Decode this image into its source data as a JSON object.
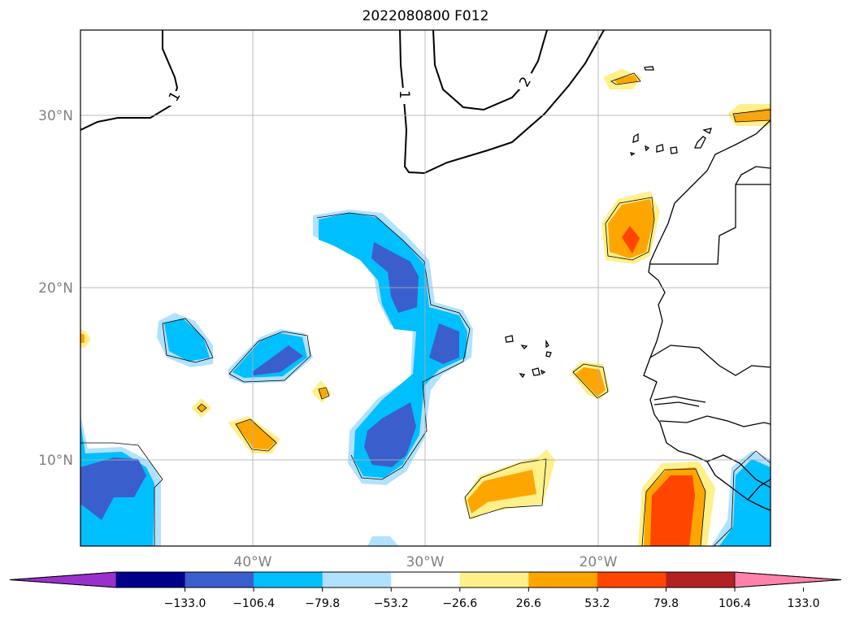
{
  "title": "2022080800 F012",
  "map": {
    "lat_labels": [
      {
        "lat": 30,
        "label": "30°N"
      },
      {
        "lat": 20,
        "label": "20°N"
      },
      {
        "lat": 10,
        "label": "10°N"
      }
    ],
    "lon_labels": [
      {
        "lon": -40,
        "label": "40°W"
      },
      {
        "lon": -30,
        "label": "30°W"
      },
      {
        "lon": -20,
        "label": "20°W"
      }
    ],
    "extent": {
      "lon_min": -50,
      "lon_max": -10,
      "lat_min": 5,
      "lat_max": 35
    },
    "contour_labels": [
      "1",
      "1",
      "2"
    ],
    "gridlines": true
  },
  "colorbar": {
    "ticks": [
      "−133.0",
      "−106.4",
      "−79.8",
      "−53.2",
      "−26.6",
      "26.6",
      "53.2",
      "79.8",
      "106.4",
      "133.0"
    ],
    "colors": [
      "#9932cc",
      "#00008b",
      "#3a5fcd",
      "#00bfff",
      "#b0e2ff",
      "#ffffff",
      "#fff08a",
      "#ffa500",
      "#ff4500",
      "#b22222",
      "#ff82ab"
    ],
    "extend": "both"
  }
}
